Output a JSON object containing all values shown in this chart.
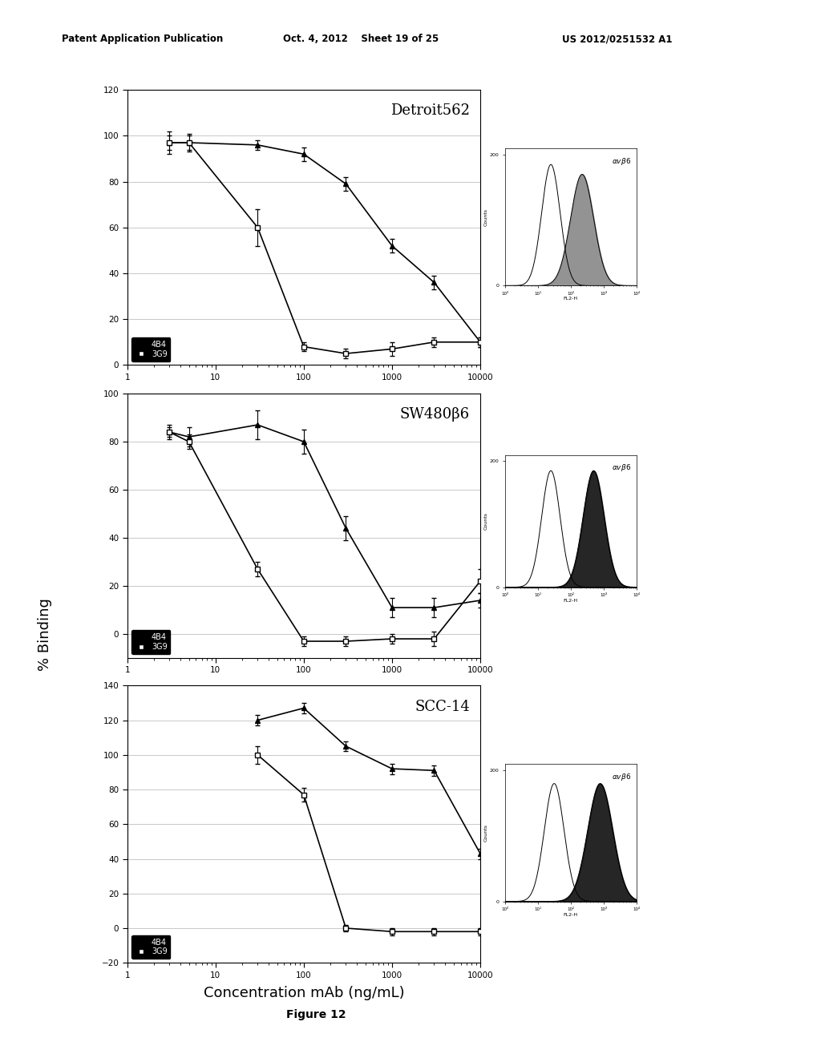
{
  "panel1": {
    "title": "Detroit562",
    "ylim": [
      0,
      120
    ],
    "yticks": [
      0,
      20,
      40,
      60,
      80,
      100,
      120
    ],
    "4B4_x": [
      3,
      5,
      30,
      100,
      300,
      1000,
      3000,
      10000
    ],
    "4B4_y": [
      97,
      97,
      96,
      92,
      79,
      52,
      36,
      10
    ],
    "4B4_yerr": [
      5,
      4,
      2,
      3,
      3,
      3,
      3,
      2
    ],
    "3G9_x": [
      3,
      5,
      30,
      100,
      300,
      1000,
      3000,
      10000
    ],
    "3G9_y": [
      97,
      97,
      60,
      8,
      5,
      7,
      10,
      10
    ],
    "3G9_yerr": [
      3,
      3,
      8,
      2,
      2,
      3,
      2,
      2
    ]
  },
  "panel2": {
    "title": "SW480β6",
    "ylim": [
      -10,
      100
    ],
    "yticks": [
      0,
      20,
      40,
      60,
      80,
      100
    ],
    "4B4_x": [
      3,
      5,
      30,
      100,
      300,
      1000,
      3000,
      10000
    ],
    "4B4_y": [
      84,
      82,
      87,
      80,
      44,
      11,
      11,
      14
    ],
    "4B4_yerr": [
      3,
      4,
      6,
      5,
      5,
      4,
      4,
      3
    ],
    "3G9_x": [
      3,
      5,
      30,
      100,
      300,
      1000,
      3000,
      10000
    ],
    "3G9_y": [
      84,
      80,
      27,
      -3,
      -3,
      -2,
      -2,
      22
    ],
    "3G9_yerr": [
      2,
      3,
      3,
      2,
      2,
      2,
      3,
      5
    ]
  },
  "panel3": {
    "title": "SCC-14",
    "ylim": [
      -20,
      140
    ],
    "yticks": [
      -20,
      0,
      20,
      40,
      60,
      80,
      100,
      120,
      140
    ],
    "4B4_x": [
      30,
      100,
      300,
      1000,
      3000,
      10000
    ],
    "4B4_y": [
      120,
      127,
      105,
      92,
      91,
      43
    ],
    "4B4_yerr": [
      3,
      3,
      3,
      3,
      3,
      3
    ],
    "3G9_x": [
      30,
      100,
      300,
      1000,
      3000,
      10000
    ],
    "3G9_y": [
      100,
      77,
      0,
      -2,
      -2,
      -2
    ],
    "3G9_yerr": [
      5,
      4,
      2,
      2,
      2,
      2
    ]
  },
  "xlabel": "Concentration mAb (ng/mL)",
  "ylabel": "% Binding",
  "figure_label": "Figure 12",
  "header_left": "Patent Application Publication",
  "header_mid": "Oct. 4, 2012    Sheet 19 of 25",
  "header_right": "US 2012/0251532 A1",
  "bg_color": "#ffffff",
  "insets": [
    {
      "mu_bg": 1.4,
      "sig_bg": 0.28,
      "amp_bg": 185,
      "mu_sig": 2.35,
      "sig_sig": 0.35,
      "amp_sig": 170,
      "fill": "gray"
    },
    {
      "mu_bg": 1.4,
      "sig_bg": 0.28,
      "amp_bg": 185,
      "mu_sig": 2.7,
      "sig_sig": 0.32,
      "amp_sig": 185,
      "fill": "black"
    },
    {
      "mu_bg": 1.5,
      "sig_bg": 0.3,
      "amp_bg": 180,
      "mu_sig": 2.9,
      "sig_sig": 0.38,
      "amp_sig": 180,
      "fill": "black"
    }
  ]
}
